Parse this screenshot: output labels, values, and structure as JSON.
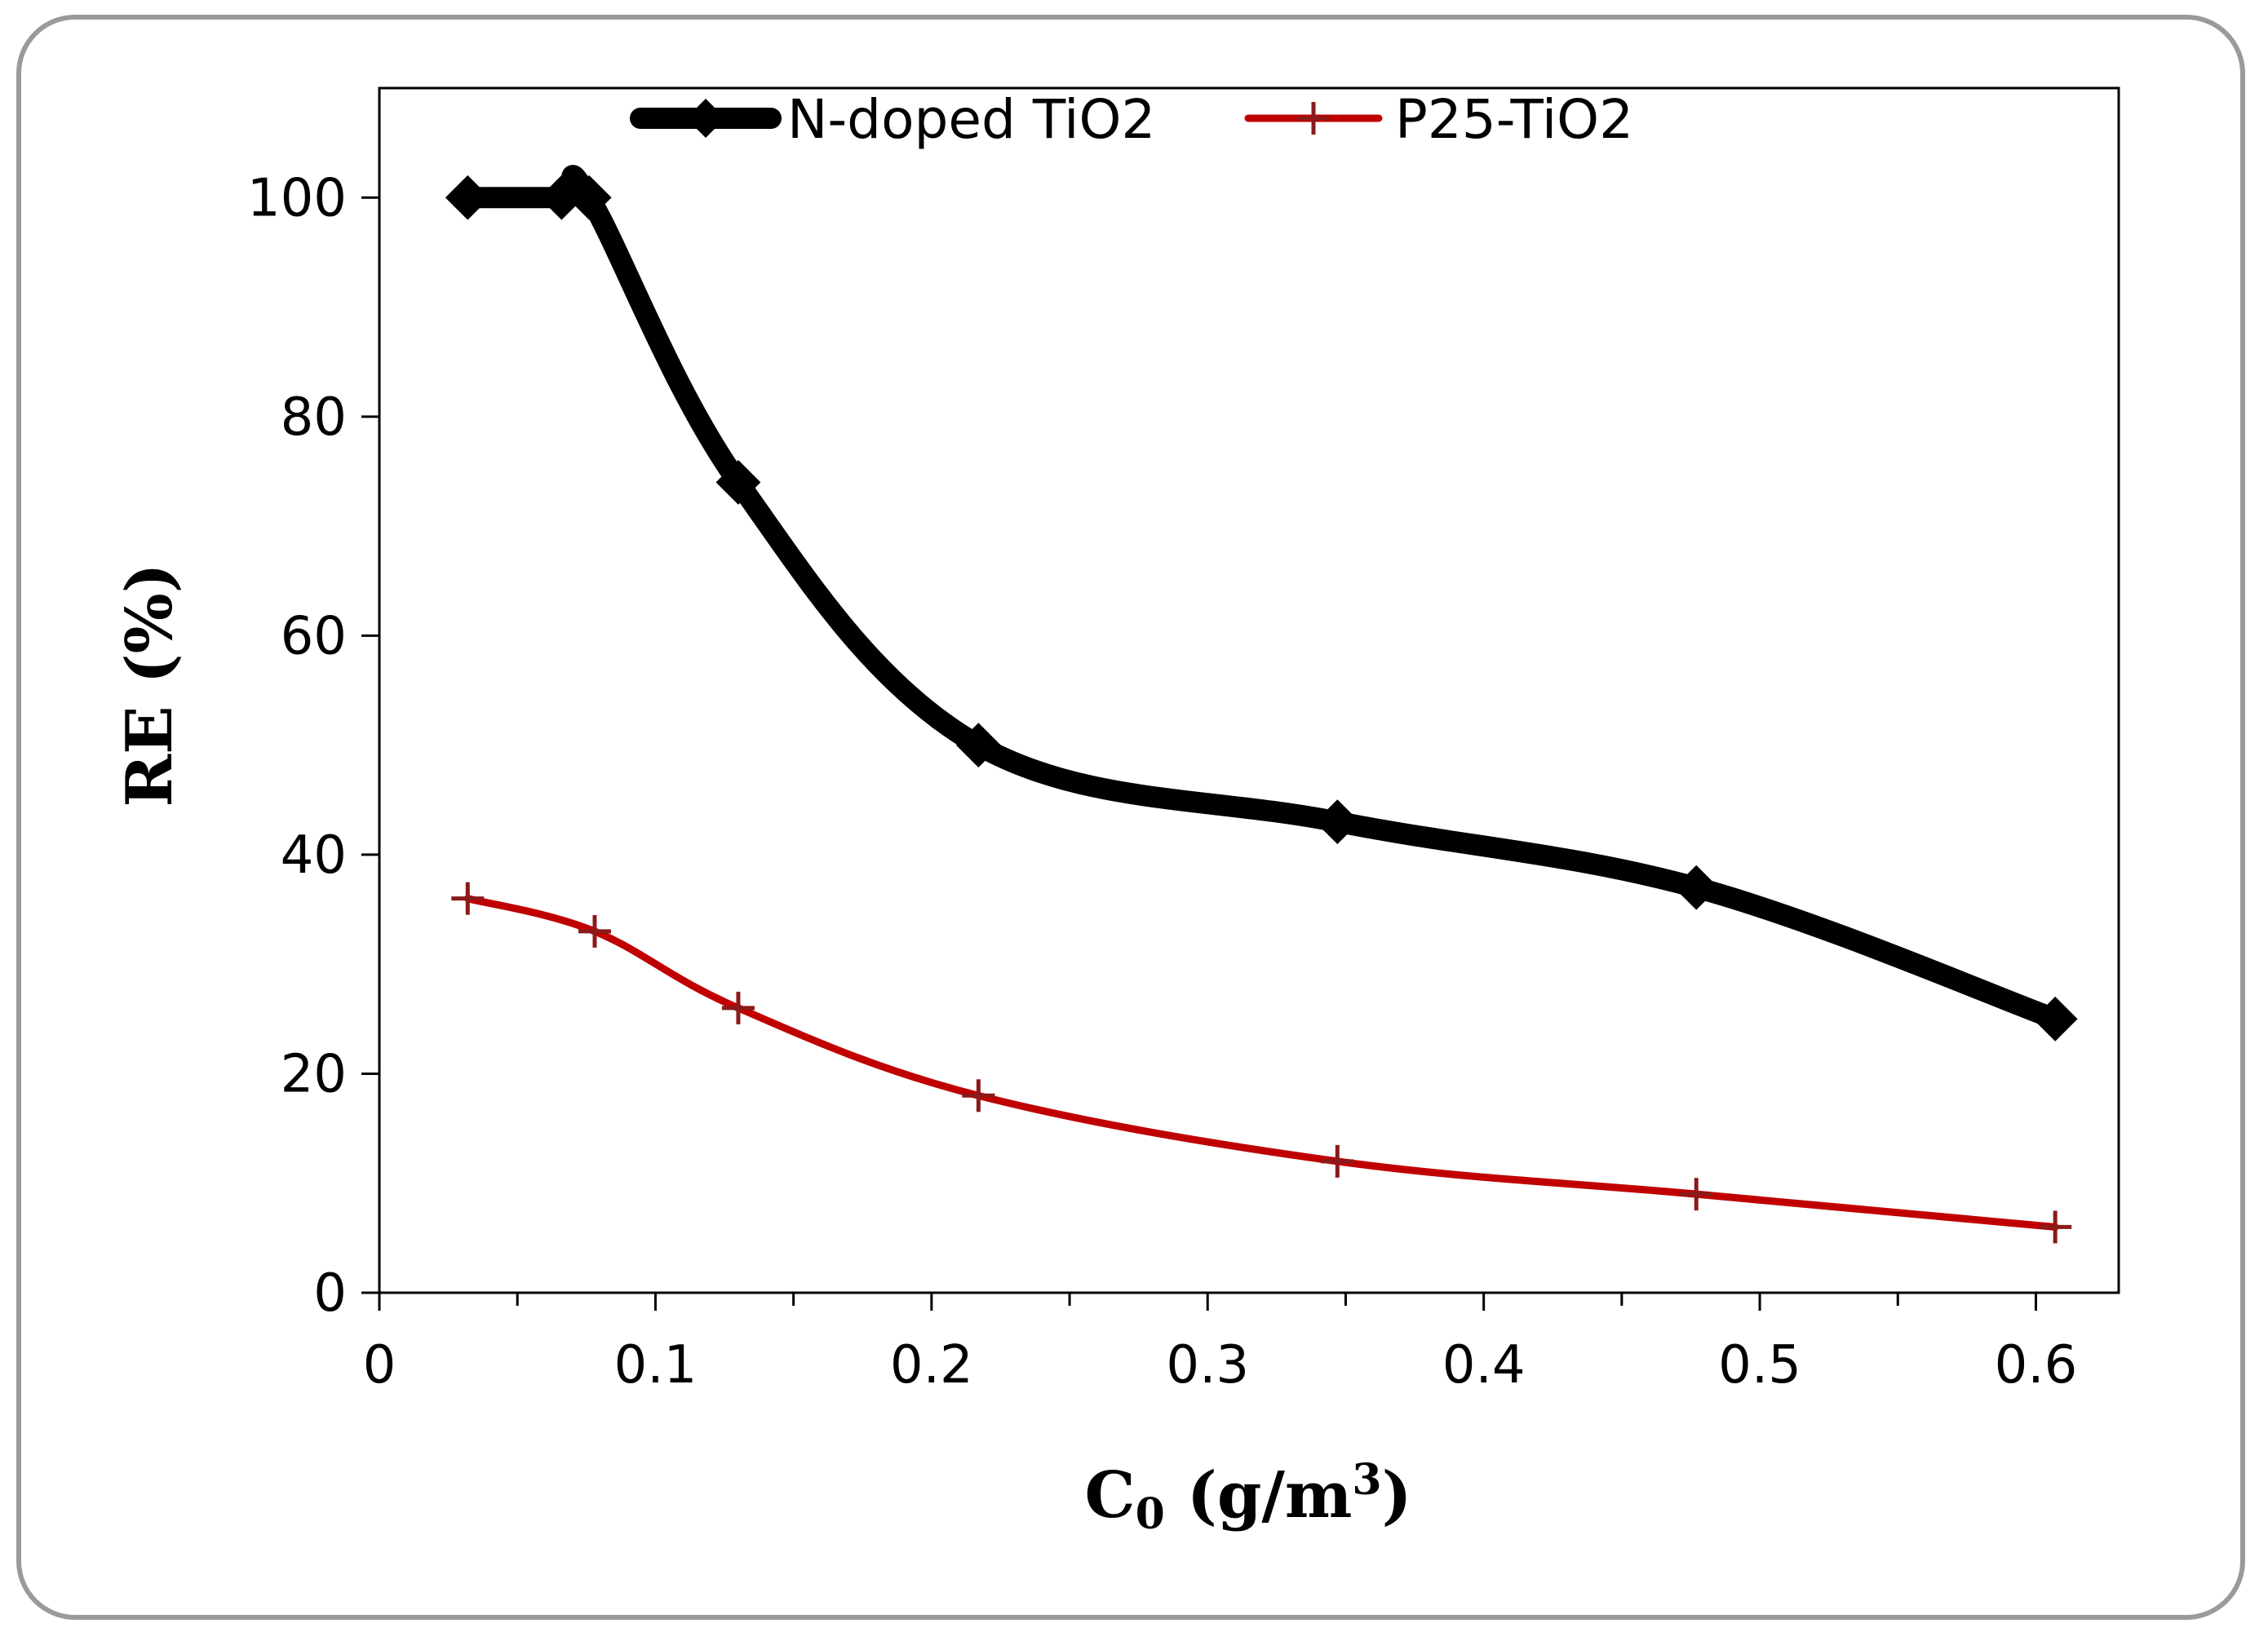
{
  "chart_data": {
    "type": "line",
    "title": "",
    "xlabel": {
      "main": "C",
      "sub": "0",
      "unit_prefix": " (g/m",
      "sup": "3",
      "unit_suffix": ")"
    },
    "ylabel": "RE (%)",
    "xlim": [
      0,
      0.63
    ],
    "ylim": [
      0,
      110
    ],
    "x_ticks": [
      0,
      0.1,
      0.2,
      0.3,
      0.4,
      0.5,
      0.6
    ],
    "x_tick_labels": [
      "0",
      "0.1",
      "0.2",
      "0.3",
      "0.4",
      "0.5",
      "0.6"
    ],
    "x_minor_ticks": [
      0.05,
      0.15,
      0.25,
      0.35,
      0.45,
      0.55
    ],
    "y_ticks": [
      0,
      20,
      40,
      60,
      80,
      100
    ],
    "y_tick_labels": [
      "0",
      "20",
      "40",
      "60",
      "80",
      "100"
    ],
    "grid": false,
    "legend_position": "top",
    "series": [
      {
        "name": "N-doped TiO2",
        "color": "#000000",
        "marker": "diamond",
        "x": [
          0.032,
          0.066,
          0.076,
          0.13,
          0.217,
          0.347,
          0.477,
          0.607
        ],
        "y": [
          100,
          100,
          100,
          74,
          50,
          43,
          37,
          25
        ]
      },
      {
        "name": "P25-TiO2",
        "color": "#c00000",
        "marker": "plus",
        "x": [
          0.032,
          0.078,
          0.13,
          0.217,
          0.347,
          0.477,
          0.607
        ],
        "y": [
          36,
          33,
          26,
          18,
          12,
          9,
          6
        ]
      }
    ]
  }
}
